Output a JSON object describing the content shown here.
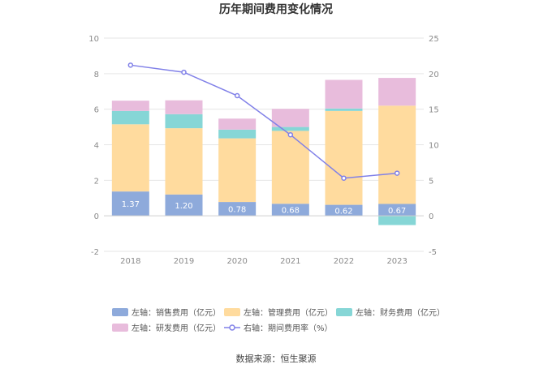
{
  "chart_data": {
    "type": "bar",
    "title": "历年期间费用变化情况",
    "categories": [
      "2018",
      "2019",
      "2020",
      "2021",
      "2022",
      "2023"
    ],
    "series": [
      {
        "name": "左轴：销售费用（亿元）",
        "kind": "bar",
        "axis": "left",
        "color": "#8eaadb",
        "values": [
          1.37,
          1.2,
          0.78,
          0.68,
          0.62,
          0.67
        ],
        "labels": [
          "1.37",
          "1.20",
          "0.78",
          "0.68",
          "0.62",
          "0.67"
        ]
      },
      {
        "name": "左轴：管理费用（亿元）",
        "kind": "bar",
        "axis": "left",
        "color": "#ffdb9e",
        "values": [
          3.78,
          3.73,
          3.58,
          4.1,
          5.28,
          5.53
        ]
      },
      {
        "name": "左轴：财务费用（亿元）",
        "kind": "bar",
        "axis": "left",
        "color": "#86d6d6",
        "values": [
          0.75,
          0.79,
          0.49,
          0.22,
          0.14,
          -0.52
        ]
      },
      {
        "name": "左轴：研发费用（亿元）",
        "kind": "bar",
        "axis": "left",
        "color": "#e8bcdc",
        "values": [
          0.58,
          0.78,
          0.62,
          1.02,
          1.61,
          1.56
        ]
      },
      {
        "name": "右轴：期间费用率（%）",
        "kind": "line",
        "axis": "right",
        "color": "#8080e8",
        "values": [
          21.2,
          20.2,
          16.9,
          11.4,
          5.3,
          6.0
        ]
      }
    ],
    "left_axis": {
      "min": -2,
      "max": 10,
      "ticks": [
        "-2",
        "0",
        "2",
        "4",
        "6",
        "8",
        "10"
      ]
    },
    "right_axis": {
      "min": -5,
      "max": 25,
      "ticks": [
        "-5",
        "0",
        "5",
        "10",
        "15",
        "20",
        "25"
      ]
    },
    "grid": true,
    "legend_position": "bottom"
  },
  "source": "数据来源：恒生聚源"
}
